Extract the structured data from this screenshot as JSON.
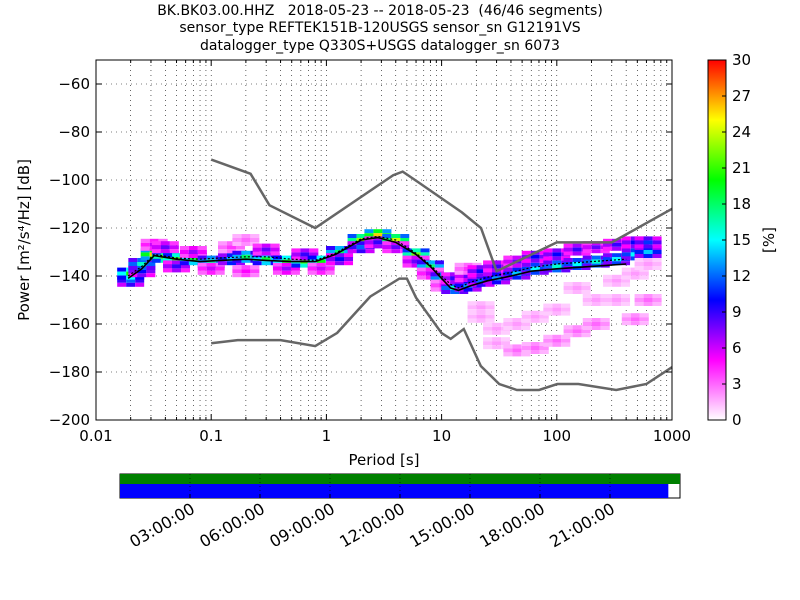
{
  "header": {
    "line1": "BK.BK03.00.HHZ   2018-05-23 -- 2018-05-23  (46/46 segments)",
    "line2": "sensor_type REFTEK151B-120USGS sensor_sn G12191VS",
    "line3": "datalogger_type Q330S+USGS datalogger_sn 6073"
  },
  "chart_data": {
    "type": "heatmap",
    "xlabel": "Period [s]",
    "ylabel": "Power [m²/s⁴/Hz] [dB]",
    "x_scale": "log",
    "xlim": [
      0.01,
      1000
    ],
    "ylim": [
      -200,
      -50
    ],
    "x_ticks": [
      {
        "value": 0.01,
        "label": "0.01"
      },
      {
        "value": 0.1,
        "label": "0.1"
      },
      {
        "value": 1,
        "label": "1"
      },
      {
        "value": 10,
        "label": "10"
      },
      {
        "value": 100,
        "label": "100"
      },
      {
        "value": 1000,
        "label": "1000"
      }
    ],
    "y_ticks": [
      {
        "value": -60,
        "label": "−60"
      },
      {
        "value": -80,
        "label": "−80"
      },
      {
        "value": -100,
        "label": "−100"
      },
      {
        "value": -120,
        "label": "−120"
      },
      {
        "value": -140,
        "label": "−140"
      },
      {
        "value": -160,
        "label": "−160"
      },
      {
        "value": -180,
        "label": "−180"
      },
      {
        "value": -200,
        "label": "−200"
      }
    ],
    "grid": true,
    "colorbar": {
      "label": "[%]",
      "min": 0,
      "max": 30,
      "ticks": [
        {
          "value": 0,
          "label": "0"
        },
        {
          "value": 3,
          "label": "3"
        },
        {
          "value": 6,
          "label": "6"
        },
        {
          "value": 9,
          "label": "9"
        },
        {
          "value": 12,
          "label": "12"
        },
        {
          "value": 15,
          "label": "15"
        },
        {
          "value": 18,
          "label": "18"
        },
        {
          "value": 21,
          "label": "21"
        },
        {
          "value": 24,
          "label": "24"
        },
        {
          "value": 27,
          "label": "27"
        },
        {
          "value": 30,
          "label": "30"
        }
      ],
      "colors": [
        "#ffffff",
        "#ff00ff",
        "#0000ff",
        "#00ffff",
        "#00ff00",
        "#ffff00",
        "#ff0000"
      ]
    },
    "noise_models": {
      "high": {
        "x": [
          0.1,
          0.22,
          0.32,
          0.8,
          3.8,
          4.6,
          6.3,
          15,
          22,
          30,
          100,
          300,
          1000
        ],
        "y": [
          -91.5,
          -97.4,
          -110.5,
          -120,
          -98,
          -96.5,
          -101,
          -113.5,
          -120,
          -138,
          -126,
          -126,
          -112
        ]
      },
      "low": {
        "x": [
          0.1,
          0.17,
          0.4,
          0.8,
          1.24,
          2.4,
          4.3,
          5,
          6,
          10,
          12,
          15.6,
          21.9,
          31.6,
          45,
          70,
          101,
          154,
          328,
          600,
          1000
        ],
        "y": [
          -168,
          -166.7,
          -166.7,
          -169.2,
          -163.7,
          -148.6,
          -141.1,
          -141.1,
          -149,
          -163.8,
          -166.2,
          -162.1,
          -177.5,
          -185,
          -187.5,
          -187.5,
          -185,
          -185,
          -187.5,
          -185,
          -178
        ]
      }
    },
    "mode_line": {
      "x": [
        0.019,
        0.025,
        0.032,
        0.05,
        0.08,
        0.12,
        0.2,
        0.3,
        0.5,
        0.8,
        1.2,
        2,
        2.8,
        4,
        6,
        8,
        10,
        12,
        14,
        18,
        25,
        40,
        60,
        100,
        200,
        400
      ],
      "y": [
        -141,
        -137,
        -131.5,
        -133,
        -134,
        -133.5,
        -133,
        -133.5,
        -134,
        -134,
        -131,
        -125,
        -124,
        -126,
        -131,
        -136,
        -141,
        -145,
        -146,
        -144,
        -142,
        -140,
        -138,
        -137,
        -136,
        -135
      ]
    },
    "mean_line": {
      "x": [
        0.019,
        0.025,
        0.032,
        0.05,
        0.08,
        0.12,
        0.2,
        0.3,
        0.5,
        0.8,
        1.2,
        2,
        2.8,
        4,
        6,
        8,
        10,
        12,
        14,
        18,
        25,
        40,
        60,
        100,
        200,
        400
      ],
      "y": [
        -140,
        -136,
        -131,
        -132.5,
        -133,
        -132.5,
        -132,
        -132,
        -133,
        -133.5,
        -130.5,
        -124.5,
        -123.5,
        -125,
        -130.5,
        -135.5,
        -140,
        -143.5,
        -145,
        -142.5,
        -140.5,
        -138.5,
        -136.5,
        -135,
        -134,
        -133
      ]
    },
    "density": [
      {
        "x": 0.02,
        "y": -142,
        "v": 12
      },
      {
        "x": 0.02,
        "y": -139,
        "v": 20
      },
      {
        "x": 0.025,
        "y": -138,
        "v": 10
      },
      {
        "x": 0.025,
        "y": -135,
        "v": 16
      },
      {
        "x": 0.032,
        "y": -131,
        "v": 26
      },
      {
        "x": 0.032,
        "y": -127,
        "v": 6
      },
      {
        "x": 0.04,
        "y": -132,
        "v": 22
      },
      {
        "x": 0.04,
        "y": -128,
        "v": 8
      },
      {
        "x": 0.05,
        "y": -133,
        "v": 21
      },
      {
        "x": 0.05,
        "y": -136,
        "v": 9
      },
      {
        "x": 0.07,
        "y": -133,
        "v": 19
      },
      {
        "x": 0.07,
        "y": -130,
        "v": 7
      },
      {
        "x": 0.1,
        "y": -134,
        "v": 17
      },
      {
        "x": 0.1,
        "y": -137,
        "v": 6
      },
      {
        "x": 0.15,
        "y": -133,
        "v": 14
      },
      {
        "x": 0.15,
        "y": -128,
        "v": 4
      },
      {
        "x": 0.2,
        "y": -132,
        "v": 18
      },
      {
        "x": 0.2,
        "y": -125,
        "v": 3
      },
      {
        "x": 0.2,
        "y": -138,
        "v": 5
      },
      {
        "x": 0.3,
        "y": -133,
        "v": 19
      },
      {
        "x": 0.3,
        "y": -129,
        "v": 8
      },
      {
        "x": 0.45,
        "y": -134,
        "v": 20
      },
      {
        "x": 0.45,
        "y": -137,
        "v": 7
      },
      {
        "x": 0.65,
        "y": -134,
        "v": 21
      },
      {
        "x": 0.65,
        "y": -131,
        "v": 9
      },
      {
        "x": 0.9,
        "y": -134,
        "v": 20
      },
      {
        "x": 0.9,
        "y": -137,
        "v": 6
      },
      {
        "x": 1.3,
        "y": -130,
        "v": 18
      },
      {
        "x": 1.3,
        "y": -133,
        "v": 10
      },
      {
        "x": 2,
        "y": -125,
        "v": 23
      },
      {
        "x": 2,
        "y": -128,
        "v": 12
      },
      {
        "x": 2.8,
        "y": -123,
        "v": 26
      },
      {
        "x": 2.8,
        "y": -126,
        "v": 9
      },
      {
        "x": 4,
        "y": -125,
        "v": 24
      },
      {
        "x": 4,
        "y": -128,
        "v": 8
      },
      {
        "x": 6,
        "y": -131,
        "v": 22
      },
      {
        "x": 6,
        "y": -134,
        "v": 8
      },
      {
        "x": 8,
        "y": -136,
        "v": 18
      },
      {
        "x": 8,
        "y": -139,
        "v": 6
      },
      {
        "x": 10.5,
        "y": -141,
        "v": 17
      },
      {
        "x": 10.5,
        "y": -144,
        "v": 5
      },
      {
        "x": 13,
        "y": -145,
        "v": 16
      },
      {
        "x": 13,
        "y": -141,
        "v": 9
      },
      {
        "x": 17,
        "y": -144,
        "v": 13
      },
      {
        "x": 17,
        "y": -140,
        "v": 8
      },
      {
        "x": 17,
        "y": -137,
        "v": 4
      },
      {
        "x": 22,
        "y": -142,
        "v": 12
      },
      {
        "x": 22,
        "y": -138,
        "v": 10
      },
      {
        "x": 22,
        "y": -153,
        "v": 2
      },
      {
        "x": 22,
        "y": -157,
        "v": 2
      },
      {
        "x": 30,
        "y": -141,
        "v": 13
      },
      {
        "x": 30,
        "y": -136,
        "v": 9
      },
      {
        "x": 30,
        "y": -162,
        "v": 2
      },
      {
        "x": 30,
        "y": -168,
        "v": 2
      },
      {
        "x": 45,
        "y": -139,
        "v": 14
      },
      {
        "x": 45,
        "y": -134,
        "v": 8
      },
      {
        "x": 45,
        "y": -160,
        "v": 2
      },
      {
        "x": 45,
        "y": -171,
        "v": 3
      },
      {
        "x": 65,
        "y": -137,
        "v": 15
      },
      {
        "x": 65,
        "y": -132,
        "v": 10
      },
      {
        "x": 65,
        "y": -157,
        "v": 2
      },
      {
        "x": 65,
        "y": -170,
        "v": 3
      },
      {
        "x": 100,
        "y": -136,
        "v": 16
      },
      {
        "x": 100,
        "y": -131,
        "v": 10
      },
      {
        "x": 100,
        "y": -154,
        "v": 2
      },
      {
        "x": 100,
        "y": -167,
        "v": 3
      },
      {
        "x": 150,
        "y": -135,
        "v": 15
      },
      {
        "x": 150,
        "y": -129,
        "v": 9
      },
      {
        "x": 150,
        "y": -145,
        "v": 2
      },
      {
        "x": 150,
        "y": -163,
        "v": 3
      },
      {
        "x": 220,
        "y": -134,
        "v": 16
      },
      {
        "x": 220,
        "y": -128,
        "v": 8
      },
      {
        "x": 220,
        "y": -150,
        "v": 2
      },
      {
        "x": 220,
        "y": -160,
        "v": 3
      },
      {
        "x": 330,
        "y": -133,
        "v": 15
      },
      {
        "x": 330,
        "y": -127,
        "v": 9
      },
      {
        "x": 330,
        "y": -142,
        "v": 2
      },
      {
        "x": 330,
        "y": -150,
        "v": 2
      },
      {
        "x": 480,
        "y": -131,
        "v": 15
      },
      {
        "x": 480,
        "y": -126,
        "v": 10
      },
      {
        "x": 480,
        "y": -139,
        "v": 2
      },
      {
        "x": 480,
        "y": -158,
        "v": 3
      },
      {
        "x": 620,
        "y": -130,
        "v": 14
      },
      {
        "x": 620,
        "y": -126,
        "v": 11
      },
      {
        "x": 620,
        "y": -135,
        "v": 2
      },
      {
        "x": 620,
        "y": -150,
        "v": 3
      }
    ]
  },
  "timeline": {
    "labels": [
      "03:00:00",
      "06:00:00",
      "09:00:00",
      "12:00:00",
      "15:00:00",
      "18:00:00",
      "21:00:00"
    ],
    "label_hours": [
      3,
      6,
      9,
      12,
      15,
      18,
      21
    ],
    "range_hours": [
      0,
      24
    ],
    "data_coverage_end_hour": 24,
    "psd_coverage_end_hour": 23.5,
    "colors": {
      "data": "#008000",
      "psd": "#0000ff"
    }
  }
}
